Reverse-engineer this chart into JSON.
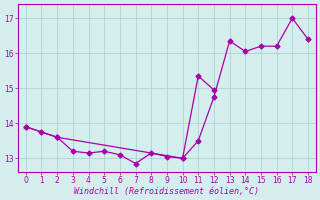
{
  "xlabel": "Windchill (Refroidissement éolien,°C)",
  "x": [
    0,
    1,
    2,
    3,
    4,
    5,
    6,
    7,
    8,
    9,
    10,
    11,
    12,
    13,
    14,
    15,
    16,
    17,
    18
  ],
  "line1_x": [
    0,
    1,
    2,
    3,
    4,
    5,
    6,
    7,
    8,
    9,
    10,
    11,
    12
  ],
  "line1_y": [
    13.9,
    13.75,
    13.6,
    13.2,
    13.15,
    13.2,
    13.1,
    12.85,
    13.15,
    13.05,
    13.0,
    15.35,
    14.95
  ],
  "line2_x": [
    0,
    2,
    10,
    11,
    12,
    13,
    14,
    15,
    16,
    17,
    18
  ],
  "line2_y": [
    13.9,
    13.6,
    13.0,
    13.5,
    14.75,
    16.35,
    16.05,
    16.2,
    16.2,
    17.0,
    16.4
  ],
  "line_color": "#aa00aa",
  "bg_color": "#d4eeee",
  "grid_color": "#aacccc",
  "xlim": [
    -0.5,
    18.5
  ],
  "ylim": [
    12.6,
    17.4
  ],
  "yticks": [
    13,
    14,
    15,
    16,
    17
  ],
  "xticks": [
    0,
    1,
    2,
    3,
    4,
    5,
    6,
    7,
    8,
    9,
    10,
    11,
    12,
    13,
    14,
    15,
    16,
    17,
    18
  ],
  "tick_fontsize": 5.5,
  "xlabel_fontsize": 6.0
}
